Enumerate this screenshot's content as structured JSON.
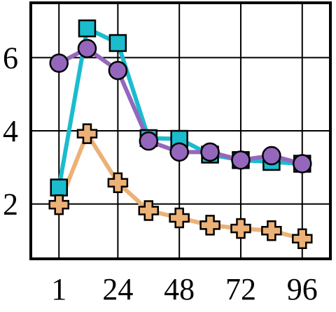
{
  "chart_data": {
    "type": "line",
    "title": "",
    "xlabel": "",
    "ylabel": "",
    "x": [
      1,
      12,
      24,
      36,
      48,
      60,
      72,
      84,
      96
    ],
    "x_ticks": [
      1,
      24,
      48,
      72,
      96
    ],
    "x_tick_labels": [
      "1",
      "24",
      "48",
      "72",
      "96"
    ],
    "y_ticks": [
      2,
      4,
      6
    ],
    "y_tick_labels": [
      "2",
      "4",
      "6"
    ],
    "xlim": [
      -10,
      107
    ],
    "ylim": [
      0.5,
      7.5
    ],
    "grid": true,
    "legend": "none",
    "series": [
      {
        "marker": "square",
        "color": "#1ABCCE",
        "values": [
          2.45,
          6.8,
          6.4,
          3.8,
          3.78,
          3.35,
          3.2,
          3.15,
          3.1
        ]
      },
      {
        "marker": "circle",
        "color": "#9467BD",
        "values": [
          5.85,
          6.25,
          5.65,
          3.72,
          3.42,
          3.42,
          3.2,
          3.32,
          3.1
        ]
      },
      {
        "marker": "plus",
        "color": "#ECB176",
        "values": [
          1.98,
          3.92,
          2.58,
          1.82,
          1.62,
          1.42,
          1.33,
          1.27,
          1.05
        ]
      }
    ]
  }
}
